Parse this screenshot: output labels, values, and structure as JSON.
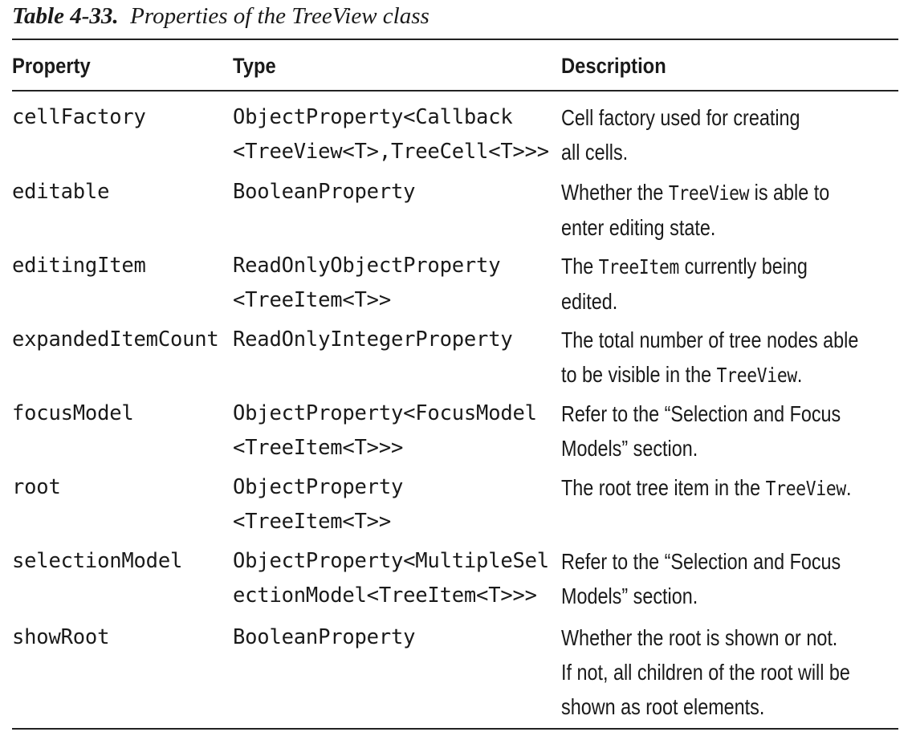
{
  "caption": {
    "number": "Table 4-33.",
    "title": "Properties of the TreeView class"
  },
  "headers": {
    "property": "Property",
    "type": "Type",
    "description": "Description"
  },
  "rows": [
    {
      "property": "cellFactory",
      "type": [
        "ObjectProperty<Callback",
        "<TreeView<T>,TreeCell<T>>>"
      ],
      "description": [
        [
          {
            "t": "Cell factory used for creating"
          }
        ],
        [
          {
            "t": "all cells."
          }
        ]
      ]
    },
    {
      "property": "editable",
      "type": [
        "BooleanProperty"
      ],
      "description": [
        [
          {
            "t": "Whether the "
          },
          {
            "t": "TreeView",
            "code": true
          },
          {
            "t": " is able to"
          }
        ],
        [
          {
            "t": "enter editing state."
          }
        ]
      ]
    },
    {
      "property": "editingItem",
      "type": [
        "ReadOnlyObjectProperty",
        "<TreeItem<T>>"
      ],
      "description": [
        [
          {
            "t": "The "
          },
          {
            "t": "TreeItem",
            "code": true
          },
          {
            "t": " currently being"
          }
        ],
        [
          {
            "t": "edited."
          }
        ]
      ]
    },
    {
      "property": "expandedItemCount",
      "type": [
        "ReadOnlyIntegerProperty"
      ],
      "description": [
        [
          {
            "t": "The total number of tree nodes able"
          }
        ],
        [
          {
            "t": "to be visible in the "
          },
          {
            "t": "TreeView",
            "code": true
          },
          {
            "t": "."
          }
        ]
      ]
    },
    {
      "property": "focusModel",
      "type": [
        "ObjectProperty<FocusModel",
        "<TreeItem<T>>>"
      ],
      "description": [
        [
          {
            "t": "Refer to the “Selection and Focus"
          }
        ],
        [
          {
            "t": "Models” section."
          }
        ]
      ]
    },
    {
      "property": "root",
      "type": [
        "ObjectProperty",
        "<TreeItem<T>>"
      ],
      "description": [
        [
          {
            "t": "The root tree item in the "
          },
          {
            "t": "TreeView",
            "code": true
          },
          {
            "t": "."
          }
        ]
      ]
    },
    {
      "property": "selectionModel",
      "type": [
        "ObjectProperty<MultipleSel",
        "ectionModel<TreeItem<T>>>"
      ],
      "description": [
        [
          {
            "t": "Refer to the “Selection and Focus"
          }
        ],
        [
          {
            "t": "Models” section."
          }
        ]
      ]
    },
    {
      "property": "showRoot",
      "type": [
        "BooleanProperty"
      ],
      "description": [
        [
          {
            "t": "Whether the root is shown or not."
          }
        ],
        [
          {
            "t": "If not, all children of the root will be"
          }
        ],
        [
          {
            "t": "shown as root elements."
          }
        ]
      ]
    }
  ]
}
